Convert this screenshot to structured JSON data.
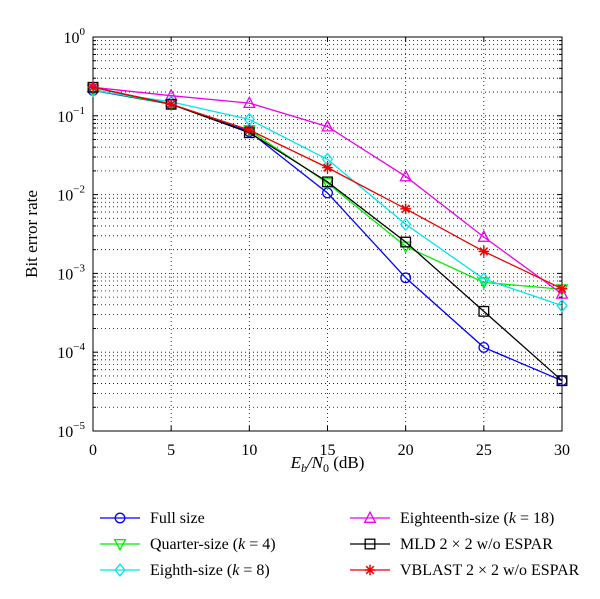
{
  "chart_data": {
    "type": "line",
    "xlabel_main": "E",
    "xlabel_sub1": "b",
    "xlabel_mid": "/N",
    "xlabel_sub2": "0",
    "xlabel_unit": " (dB)",
    "ylabel": "Bit error rate",
    "xlim": [
      0,
      30
    ],
    "ylim": [
      1e-05,
      1
    ],
    "yscale": "log",
    "grid": true,
    "legend_position": "below",
    "x_ticks": [
      0,
      5,
      10,
      15,
      20,
      25,
      30
    ],
    "x_tick_labels": [
      "0",
      "5",
      "10",
      "15",
      "20",
      "25",
      "30"
    ],
    "y_ticks": [
      {
        "value": 1,
        "base": "10",
        "exp": "0"
      },
      {
        "value": 0.1,
        "base": "10",
        "exp": "−1"
      },
      {
        "value": 0.01,
        "base": "10",
        "exp": "−2"
      },
      {
        "value": 0.001,
        "base": "10",
        "exp": "−3"
      },
      {
        "value": 0.0001,
        "base": "10",
        "exp": "−4"
      },
      {
        "value": 1e-05,
        "base": "10",
        "exp": "−5"
      }
    ],
    "series": [
      {
        "name": "Full size",
        "color": "#0000ff",
        "marker": "circle",
        "x": [
          0,
          5,
          10,
          15,
          20,
          25,
          30
        ],
        "y": [
          0.21,
          0.14,
          0.063,
          0.0105,
          0.00088,
          0.000115,
          4.35e-05
        ]
      },
      {
        "name_pre": "Quarter-size (",
        "name_var": "k",
        "name_post": " = 4)",
        "color": "#00ee00",
        "marker": "triangle-down",
        "x": [
          0,
          5,
          10,
          15,
          20,
          25,
          30
        ],
        "y": [
          0.215,
          0.14,
          0.066,
          0.014,
          0.0022,
          0.00077,
          0.00063
        ]
      },
      {
        "name_pre": "Eighth-size (",
        "name_var": "k",
        "name_post": " = 8)",
        "color": "#00e5ee",
        "marker": "diamond",
        "x": [
          0,
          5,
          10,
          15,
          20,
          25,
          30
        ],
        "y": [
          0.21,
          0.15,
          0.09,
          0.028,
          0.0042,
          0.00085,
          0.00039
        ]
      },
      {
        "name_pre": "Eighteenth-size (",
        "name_var": "k",
        "name_post": " = 18)",
        "color": "#ee00ee",
        "marker": "triangle-up",
        "x": [
          0,
          5,
          10,
          15,
          20,
          25,
          30
        ],
        "y": [
          0.23,
          0.18,
          0.145,
          0.073,
          0.017,
          0.0029,
          0.00055
        ]
      },
      {
        "name": "MLD 2 × 2 w/o ESPAR",
        "color": "#000000",
        "marker": "square",
        "x": [
          0,
          5,
          10,
          15,
          20,
          25,
          30
        ],
        "y": [
          0.23,
          0.14,
          0.061,
          0.0145,
          0.0025,
          0.00033,
          4.35e-05
        ]
      },
      {
        "name": "VBLAST 2 × 2 w/o ESPAR",
        "color": "#ee0000",
        "marker": "asterisk",
        "x": [
          0,
          5,
          10,
          15,
          20,
          25,
          30
        ],
        "y": [
          0.23,
          0.14,
          0.066,
          0.022,
          0.0066,
          0.0019,
          0.00064
        ]
      }
    ]
  }
}
